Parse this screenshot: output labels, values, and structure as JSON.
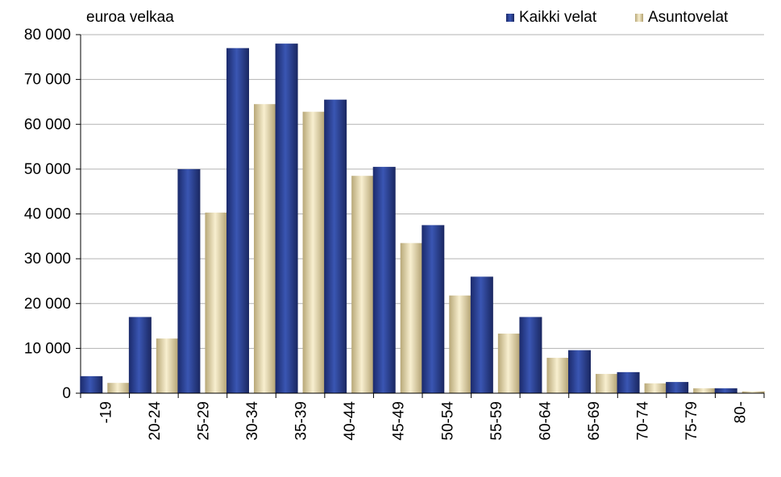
{
  "chart_data": {
    "type": "bar",
    "title": "",
    "ylabel": "euroa velkaa",
    "xlabel": "",
    "ylim": [
      0,
      80000
    ],
    "yticks": [
      0,
      10000,
      20000,
      30000,
      40000,
      50000,
      60000,
      70000,
      80000
    ],
    "ytick_labels": [
      "0",
      "10 000",
      "20 000",
      "30 000",
      "40 000",
      "50 000",
      "60 000",
      "70 000",
      "80 000"
    ],
    "grid": true,
    "legend_position": "top-right",
    "categories": [
      "-19",
      "20-24",
      "25-29",
      "30-34",
      "35-39",
      "40-44",
      "45-49",
      "50-54",
      "55-59",
      "60-64",
      "65-69",
      "70-74",
      "75-79",
      "80-"
    ],
    "series": [
      {
        "name": "Kaikki velat",
        "color": "#2b3f8f",
        "values": [
          3800,
          17000,
          50000,
          77000,
          78000,
          65500,
          50500,
          37500,
          26000,
          17000,
          9600,
          4700,
          2500,
          1100
        ]
      },
      {
        "name": "Asuntovelat",
        "color": "#e6d7a6",
        "values": [
          2300,
          12200,
          40300,
          64500,
          62800,
          48500,
          33500,
          21800,
          13300,
          7900,
          4300,
          2200,
          1100,
          400
        ]
      }
    ]
  }
}
